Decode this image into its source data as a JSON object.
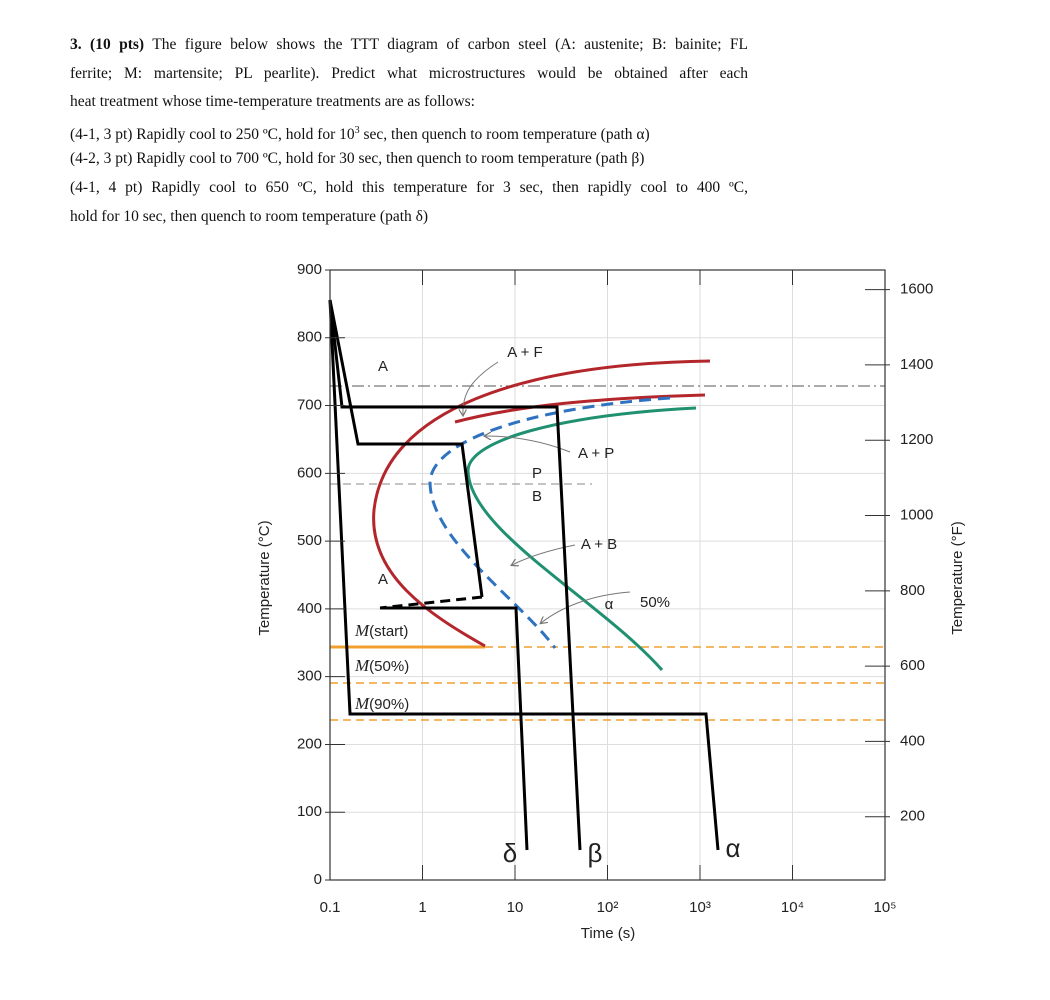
{
  "question": {
    "heading": "3. (10 pts)",
    "lines": [
      [
        " The figure below shows the TTT diagram of carbon steel (A: austenite; B: bainite; FL"
      ],
      [
        "ferrite; M: martensite; PL pearlite). Predict what microstructures would be obtained after each"
      ],
      [
        "heat treatment whose time-temperature treatments are as follows:"
      ],
      [
        "(4-1, 3 pt) Rapidly cool to 250 ºC, hold for 10",
        "3",
        " sec, then quench to room temperature (path α)"
      ],
      [
        "(4-2, 3 pt) Rapidly cool to 700 ºC, hold for 30 sec, then quench to room temperature (path β)"
      ],
      [
        "(4-1, 4 pt) Rapidly cool to 650 ºC, hold this temperature for 3 sec, then rapidly cool to 400 ºC,"
      ],
      [
        "hold for 10 sec, then quench to room temperature (path δ)"
      ]
    ]
  },
  "figure": {
    "ylabel": "Temperature (°C)",
    "y2label": "Temperature (°F)",
    "xlabel": "Time (s)",
    "ylim": [
      0,
      900
    ],
    "y2lim": [
      32,
      1652
    ],
    "xlim": [
      0.1,
      100000
    ],
    "log_x": true,
    "grid": true,
    "yticks": [
      0,
      100,
      200,
      300,
      400,
      500,
      600,
      700,
      800,
      900
    ],
    "y2ticks": [
      200,
      400,
      600,
      800,
      1000,
      1200,
      1400,
      1600
    ],
    "xticks": [
      {
        "value": 0.1,
        "label": "0.1"
      },
      {
        "value": 1,
        "label": "1"
      },
      {
        "value": 10,
        "label": "10"
      },
      {
        "value": 100,
        "label": "10²"
      },
      {
        "value": 1000,
        "label": "10³"
      },
      {
        "value": 10000,
        "label": "10⁴"
      },
      {
        "value": 100000,
        "label": "10⁵"
      }
    ],
    "regions": {
      "af": "A + F",
      "a1": "A",
      "ap": "A + P",
      "p": "P",
      "b": "B",
      "ab": "A + B",
      "a2": "A",
      "alpha": "α",
      "pct": "50%"
    },
    "martensite": [
      {
        "symbol": "M",
        "text": "(start)"
      },
      {
        "symbol": "M",
        "text": "(50%)"
      },
      {
        "symbol": "M",
        "text": "(90%)"
      }
    ],
    "paths": {
      "delta": "δ",
      "beta": "β",
      "alpha": "α"
    }
  }
}
